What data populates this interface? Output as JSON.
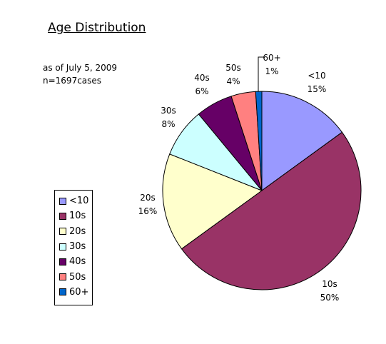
{
  "chart_data": {
    "type": "pie",
    "title": "Age Distribution",
    "subtitle_lines": [
      "as of July 5, 2009",
      "n=1697cases"
    ],
    "legend_position": "left",
    "start_angle_deg": 0,
    "direction": "clockwise",
    "slices": [
      {
        "label": "<10",
        "value": 15,
        "display": "15%",
        "color": "#9999FF"
      },
      {
        "label": "10s",
        "value": 50,
        "display": "50%",
        "color": "#993366"
      },
      {
        "label": "20s",
        "value": 16,
        "display": "16%",
        "color": "#FFFFCC"
      },
      {
        "label": "30s",
        "value": 8,
        "display": "8%",
        "color": "#CCFFFF"
      },
      {
        "label": "40s",
        "value": 6,
        "display": "6%",
        "color": "#660066"
      },
      {
        "label": "50s",
        "value": 4,
        "display": "4%",
        "color": "#FF8080"
      },
      {
        "label": "60+",
        "value": 1,
        "display": "1%",
        "color": "#0066CC"
      }
    ]
  }
}
